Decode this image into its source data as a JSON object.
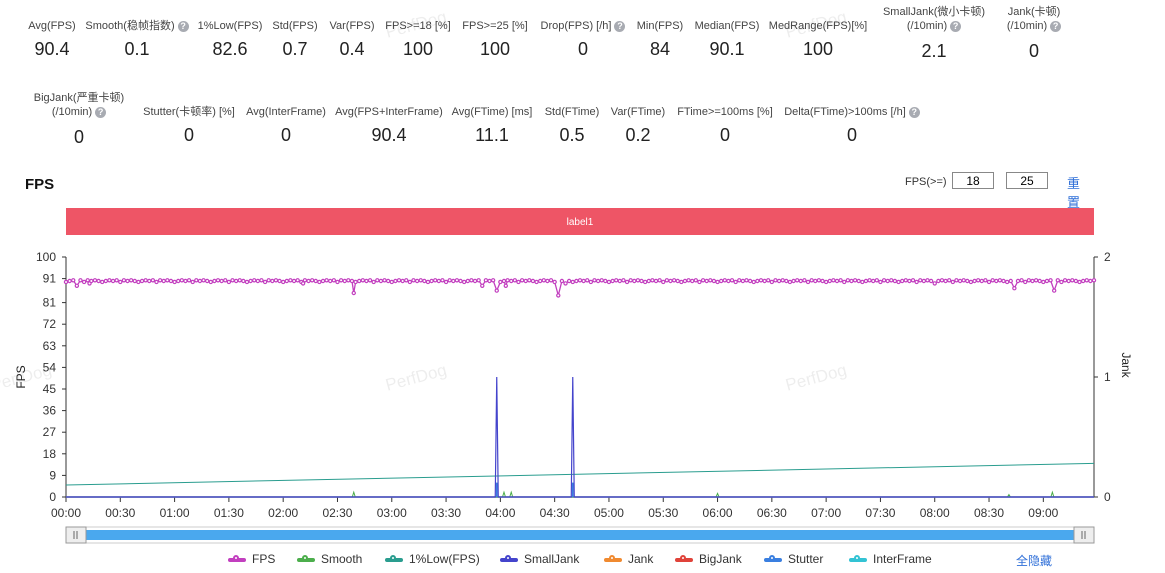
{
  "stats_row1": [
    {
      "label": "Avg(FPS)",
      "value": "90.4",
      "help": false
    },
    {
      "label": "Smooth(稳帧指数)",
      "value": "0.1",
      "help": true
    },
    {
      "label": "1%Low(FPS)",
      "value": "82.6",
      "help": false
    },
    {
      "label": "Std(FPS)",
      "value": "0.7",
      "help": false
    },
    {
      "label": "Var(FPS)",
      "value": "0.4",
      "help": false
    },
    {
      "label": "FPS>=18 [%]",
      "value": "100",
      "help": false
    },
    {
      "label": "FPS>=25 [%]",
      "value": "100",
      "help": false
    },
    {
      "label": "Drop(FPS) [/h]",
      "value": "0",
      "help": true
    },
    {
      "label": "Min(FPS)",
      "value": "84",
      "help": false
    },
    {
      "label": "Median(FPS)",
      "value": "90.1",
      "help": false
    },
    {
      "label": "MedRange(FPS)[%]",
      "value": "100",
      "help": false
    },
    {
      "label": "SmallJank(微小卡顿)",
      "label2": "(/10min)",
      "value": "2.1",
      "help": true
    },
    {
      "label": "Jank(卡顿)",
      "label2": "(/10min)",
      "value": "0",
      "help": true
    }
  ],
  "stats_row2": [
    {
      "label": "BigJank(严重卡顿)",
      "label2": "(/10min)",
      "value": "0",
      "help": true
    },
    {
      "label": "Stutter(卡顿率) [%]",
      "value": "0",
      "help": false
    },
    {
      "label": "Avg(InterFrame)",
      "value": "0",
      "help": false
    },
    {
      "label": "Avg(FPS+InterFrame)",
      "value": "90.4",
      "help": false
    },
    {
      "label": "Avg(FTime) [ms]",
      "value": "11.1",
      "help": false
    },
    {
      "label": "Std(FTime)",
      "value": "0.5",
      "help": false
    },
    {
      "label": "Var(FTime)",
      "value": "0.2",
      "help": false
    },
    {
      "label": "FTime>=100ms [%]",
      "value": "0",
      "help": false
    },
    {
      "label": "Delta(FTime)>100ms [/h]",
      "value": "0",
      "help": true
    }
  ],
  "fps_filter": {
    "label": "FPS(>=)",
    "value1": "18",
    "value2": "25",
    "reset_label": "重置"
  },
  "watermark": "PerfDog",
  "legend_hide_all": "全隐藏",
  "chart_data": {
    "type": "line",
    "title": "FPS",
    "band_label": "label1",
    "band_color": "#ee5566",
    "xlabel": "",
    "ylabel": "FPS",
    "y2label": "Jank",
    "ylim": [
      0,
      100
    ],
    "y_ticks": [
      0,
      9,
      18,
      27,
      36,
      45,
      54,
      63,
      72,
      81,
      91,
      100
    ],
    "y2lim": [
      0,
      2
    ],
    "y2_ticks": [
      0,
      1,
      2
    ],
    "x_range_seconds": [
      0,
      568
    ],
    "x_ticks": [
      {
        "t": 0,
        "label": "00:00"
      },
      {
        "t": 30,
        "label": "00:30"
      },
      {
        "t": 60,
        "label": "01:00"
      },
      {
        "t": 90,
        "label": "01:30"
      },
      {
        "t": 120,
        "label": "02:00"
      },
      {
        "t": 150,
        "label": "02:30"
      },
      {
        "t": 180,
        "label": "03:00"
      },
      {
        "t": 210,
        "label": "03:30"
      },
      {
        "t": 240,
        "label": "04:00"
      },
      {
        "t": 270,
        "label": "04:30"
      },
      {
        "t": 300,
        "label": "05:00"
      },
      {
        "t": 330,
        "label": "05:30"
      },
      {
        "t": 360,
        "label": "06:00"
      },
      {
        "t": 390,
        "label": "06:30"
      },
      {
        "t": 420,
        "label": "07:00"
      },
      {
        "t": 450,
        "label": "07:30"
      },
      {
        "t": 480,
        "label": "08:00"
      },
      {
        "t": 510,
        "label": "08:30"
      },
      {
        "t": 540,
        "label": "09:00"
      }
    ],
    "series": [
      {
        "name": "FPS",
        "color": "#c23fbf",
        "axis": "left",
        "baseline": 90,
        "dips": [
          {
            "t": 6,
            "v": 88
          },
          {
            "t": 13,
            "v": 89
          },
          {
            "t": 131,
            "v": 89
          },
          {
            "t": 159,
            "v": 85
          },
          {
            "t": 230,
            "v": 88
          },
          {
            "t": 238,
            "v": 86
          },
          {
            "t": 243,
            "v": 88
          },
          {
            "t": 272,
            "v": 84
          },
          {
            "t": 276,
            "v": 89
          },
          {
            "t": 480,
            "v": 89
          },
          {
            "t": 524,
            "v": 87
          },
          {
            "t": 546,
            "v": 86
          }
        ]
      },
      {
        "name": "Smooth",
        "color": "#4cae4c",
        "axis": "left",
        "baseline": 0,
        "spikes": [
          {
            "t": 159,
            "v": 2
          },
          {
            "t": 242,
            "v": 2
          },
          {
            "t": 246,
            "v": 2
          },
          {
            "t": 360,
            "v": 1.5
          },
          {
            "t": 545,
            "v": 2
          },
          {
            "t": 521,
            "v": 1
          }
        ]
      },
      {
        "name": "1%Low(FPS)",
        "color": "#2a9d8f",
        "axis": "left",
        "start": 5,
        "end": 14
      },
      {
        "name": "SmallJank",
        "color": "#4444cc",
        "axis": "right",
        "baseline": 0,
        "spikes": [
          {
            "t": 238,
            "v": 1
          },
          {
            "t": 280,
            "v": 1
          }
        ]
      },
      {
        "name": "Jank",
        "color": "#f08a30",
        "axis": "right",
        "baseline": 0
      },
      {
        "name": "BigJank",
        "color": "#e0433a",
        "axis": "right",
        "baseline": 0
      },
      {
        "name": "Stutter",
        "color": "#3a7fe0",
        "axis": "right",
        "baseline": 0
      },
      {
        "name": "InterFrame",
        "color": "#33c3d4",
        "axis": "left",
        "baseline": 0
      }
    ]
  }
}
